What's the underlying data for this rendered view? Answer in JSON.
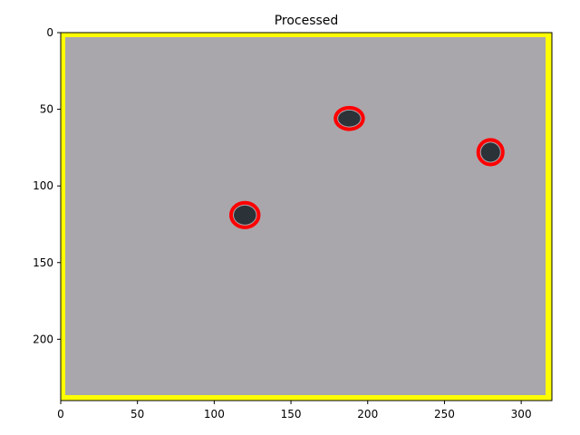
{
  "plot": {
    "title": "Processed",
    "xlim": [
      0,
      320
    ],
    "ylim": [
      240,
      0
    ],
    "x_ticks": [
      0,
      50,
      100,
      150,
      200,
      250,
      300
    ],
    "y_ticks": [
      0,
      50,
      100,
      150,
      200
    ],
    "y_axis_inverted": true,
    "grid": false
  },
  "image": {
    "background_color": "#aaa7ac",
    "border_color": "#ffff00",
    "detection_outline_color": "#ff0000",
    "blob_color": "#2b3238",
    "detections": [
      {
        "id": "blob-1",
        "x": 188,
        "y": 56,
        "rx": 9,
        "ry": 7
      },
      {
        "id": "blob-2",
        "x": 280,
        "y": 78,
        "rx": 8,
        "ry": 8
      },
      {
        "id": "blob-3",
        "x": 120,
        "y": 119,
        "rx": 9,
        "ry": 8
      }
    ]
  }
}
